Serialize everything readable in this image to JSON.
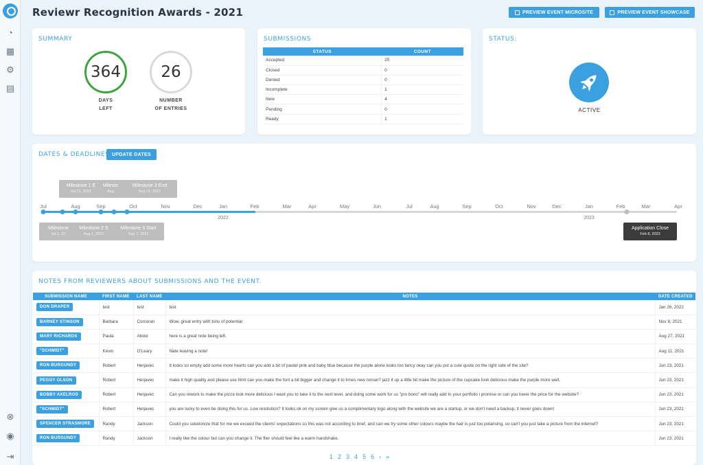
{
  "app": {
    "title": "Reviewr Recognition Awards - 2021"
  },
  "actions": {
    "preview_microsite": "PREVIEW EVENT MICROSITE",
    "preview_showcase": "PREVIEW EVENT SHOWCASE"
  },
  "summary": {
    "title": "SUMMARY",
    "days_left": {
      "value": "364",
      "label1": "DAYS",
      "label2": "LEFT"
    },
    "entries": {
      "value": "26",
      "label1": "NUMBER",
      "label2": "OF ENTRIES"
    }
  },
  "submissions": {
    "title": "SUBMISSIONS",
    "headers": [
      "STATUS",
      "COUNT"
    ],
    "rows": [
      [
        "Accepted",
        "25"
      ],
      [
        "Closed",
        "0"
      ],
      [
        "Denied",
        "0"
      ],
      [
        "Incomplete",
        "1"
      ],
      [
        "New",
        "4"
      ],
      [
        "Pending",
        "0"
      ],
      [
        "Ready",
        "1"
      ]
    ]
  },
  "status": {
    "title": "STATUS:",
    "value": "ACTIVE"
  },
  "dates": {
    "title": "DATES & DEADLINES",
    "update_button": "UPDATE DATES",
    "months": [
      "Jul",
      "Aug",
      "Sep",
      "Oct",
      "Nov",
      "Dec",
      "Jan",
      "Feb",
      "Mar",
      "Apr",
      "May",
      "Jun",
      "Jul",
      "Aug",
      "Sep",
      "Oct",
      "Nov",
      "Dec",
      "Jan",
      "Feb",
      "Mar",
      "Apr"
    ],
    "years": [
      "2022",
      "2023"
    ],
    "milestones_top": [
      {
        "name": "Milestone 1 E",
        "date": "Jul 21, 2021"
      },
      {
        "name": "Milesto",
        "date": "Aug"
      },
      {
        "name": "Milestone 3 End",
        "date": "Sep 21, 2021"
      }
    ],
    "milestones_bottom": [
      {
        "name": "Milestone",
        "date": "Jul 1, 20"
      },
      {
        "name": "Milestone 2 S",
        "date": "Aug 1, 2021"
      },
      {
        "name": "Milestone 3 Start",
        "date": "Sep 7, 2021"
      }
    ],
    "application_close": {
      "name": "Application Close",
      "date": "Feb 8, 2023"
    }
  },
  "notes": {
    "title": "NOTES FROM REVIEWERS ABOUT SUBMISSIONS AND THE EVENT.",
    "headers": [
      "SUBMISSION NAME",
      "FIRST NAME",
      "LAST NAME",
      "NOTES",
      "DATE CREATED"
    ],
    "rows": [
      [
        "DON DRAPER",
        "test",
        "test",
        "test",
        "Jan 26, 2022"
      ],
      [
        "BARNEY STINSON",
        "Barbara",
        "Corcoran",
        "Wow, great entry with tons of potential.",
        "Nov 8, 2021"
      ],
      [
        "MARY RICHARDS",
        "Paula",
        "Abdul",
        "here is a great note being left.",
        "Aug 27, 2021"
      ],
      [
        "\"SCHMIDT\"",
        "Kevin",
        "O'Leary",
        "Nate leaving a note!",
        "Aug 11, 2021"
      ],
      [
        "RON BURGUNDY",
        "Robert",
        "Herjavec",
        "It looks so empty add some more hearts can you add a bit of pastel pink and baby blue because the purple alone looks too fancy okay can you put a cute quote on the right side of the site?",
        "Jun 23, 2021"
      ],
      [
        "PEGGY OLSON",
        "Robert",
        "Herjavec",
        "make it high quality and please use html can you make the font a bit bigger and change it to times new roman? jazz it up a little bit make the picture of the cupcake look delicious make the purple more well,",
        "Jun 23, 2021"
      ],
      [
        "BOBBY AXELROD",
        "Robert",
        "Herjavec",
        "Can you rework to make the pizza look more delicious I want you to take it to the next level, and doing some work for us \"pro bono\" will really add to your portfolio i promise or can you lower the price for the website?",
        "Jun 23, 2021"
      ],
      [
        "\"SCHMIDT\"",
        "Robert",
        "Herjavec",
        "you are lucky to even be doing this for us. Low resolution? It looks ok on my screen give us a complimentary logo along with the website we are a startup, or we don't need a backup, it never goes down!",
        "Jun 23, 2021"
      ],
      [
        "SPENCER STRASMORE",
        "Randy",
        "Jackson",
        "Could you solutionize that for me we exceed the clients' expectations so this was not according to brief, and can we try some other colours maybe the hair is just too polarising, so can't you just take a picture from the internet?",
        "Jun 23, 2021"
      ],
      [
        "RON BURGUNDY",
        "Randy",
        "Jackson",
        "I really like the colour but can you change it. The flier should feel like a warm handshake.",
        "Jun 23, 2021"
      ]
    ],
    "pages": [
      "1",
      "2",
      "3",
      "4",
      "5",
      "6",
      "›",
      "»"
    ]
  },
  "colors": {
    "accent": "#3aa0e0",
    "success": "#3fa33f",
    "muted": "#bdbdbd"
  },
  "icons": {
    "sidebar": [
      "search-icon",
      "dashboard-icon",
      "calendar-icon",
      "gear-icon",
      "clipboard-icon",
      "help-icon",
      "user-icon",
      "logout-icon"
    ],
    "status": "rocket-icon",
    "buttons": "external-link-icon"
  }
}
